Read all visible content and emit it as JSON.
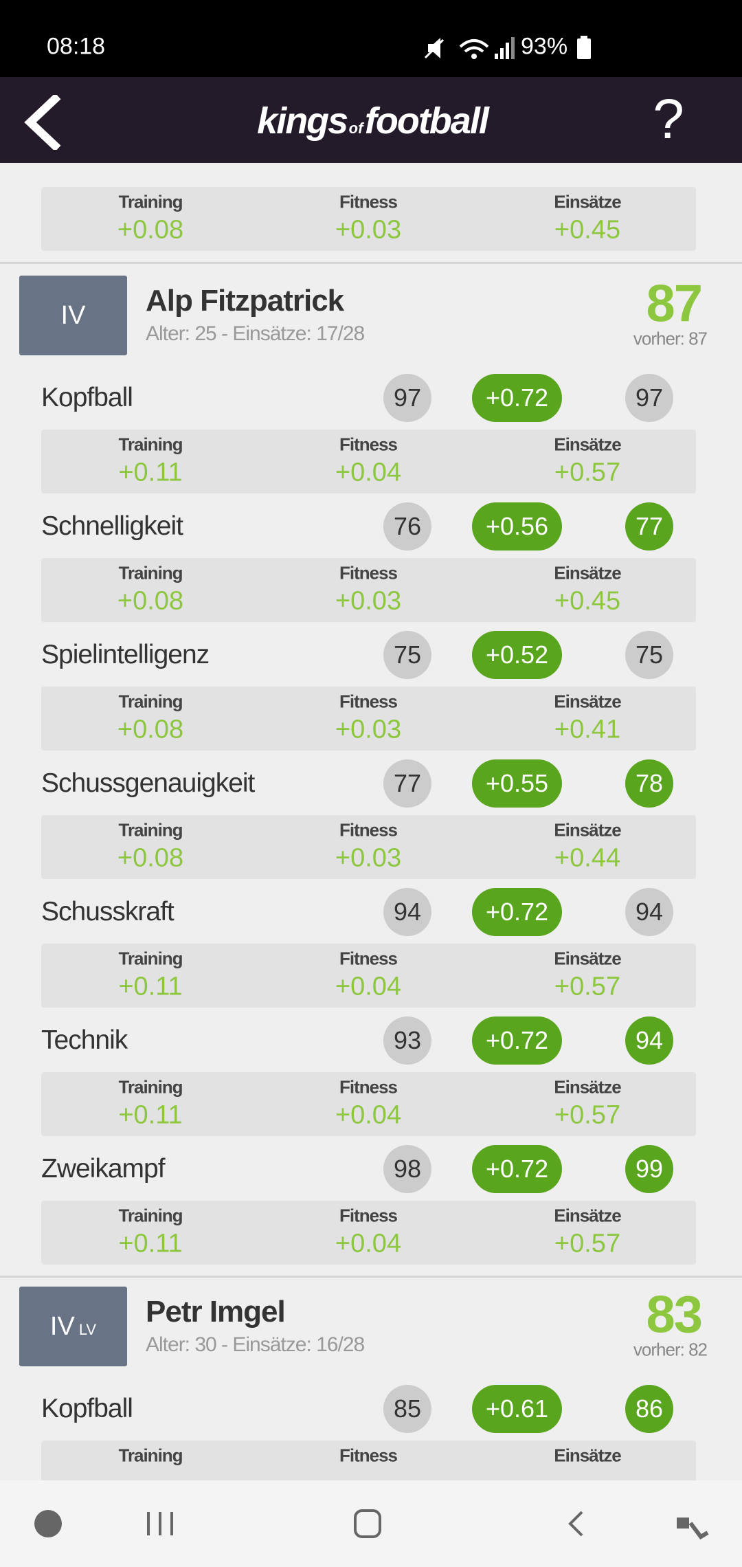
{
  "status": {
    "time": "08:18",
    "battery": "93%"
  },
  "header": {
    "logo_left": "kings",
    "logo_mid": "of",
    "logo_right": "football",
    "help": "?"
  },
  "top_breakdown": {
    "labels": [
      "Training",
      "Fitness",
      "Einsätze"
    ],
    "values": [
      "+0.08",
      "+0.03",
      "+0.45"
    ]
  },
  "players": [
    {
      "position": "IV",
      "name": "Alp Fitzpatrick",
      "meta": "Alter: 25 - Einsätze: 17/28",
      "rating": 87,
      "previous": "vorher: 87",
      "stats": [
        {
          "name": "Kopfball",
          "old": 97,
          "delta": "+0.72",
          "new": 97,
          "labels": [
            "Training",
            "Fitness",
            "Einsätze"
          ],
          "values": [
            "+0.11",
            "+0.04",
            "+0.57"
          ]
        },
        {
          "name": "Schnelligkeit",
          "old": 76,
          "delta": "+0.56",
          "new": 77,
          "labels": [
            "Training",
            "Fitness",
            "Einsätze"
          ],
          "values": [
            "+0.08",
            "+0.03",
            "+0.45"
          ]
        },
        {
          "name": "Spielintelligenz",
          "old": 75,
          "delta": "+0.52",
          "new": 75,
          "labels": [
            "Training",
            "Fitness",
            "Einsätze"
          ],
          "values": [
            "+0.08",
            "+0.03",
            "+0.41"
          ]
        },
        {
          "name": "Schussgenauigkeit",
          "old": 77,
          "delta": "+0.55",
          "new": 78,
          "labels": [
            "Training",
            "Fitness",
            "Einsätze"
          ],
          "values": [
            "+0.08",
            "+0.03",
            "+0.44"
          ]
        },
        {
          "name": "Schusskraft",
          "old": 94,
          "delta": "+0.72",
          "new": 94,
          "labels": [
            "Training",
            "Fitness",
            "Einsätze"
          ],
          "values": [
            "+0.11",
            "+0.04",
            "+0.57"
          ]
        },
        {
          "name": "Technik",
          "old": 93,
          "delta": "+0.72",
          "new": 94,
          "labels": [
            "Training",
            "Fitness",
            "Einsätze"
          ],
          "values": [
            "+0.11",
            "+0.04",
            "+0.57"
          ]
        },
        {
          "name": "Zweikampf",
          "old": 98,
          "delta": "+0.72",
          "new": 99,
          "labels": [
            "Training",
            "Fitness",
            "Einsätze"
          ],
          "values": [
            "+0.11",
            "+0.04",
            "+0.57"
          ]
        }
      ]
    },
    {
      "position": "IV",
      "position_sub": "LV",
      "name": "Petr Imgel",
      "meta": "Alter: 30 - Einsätze: 16/28",
      "rating": 83,
      "previous": "vorher: 82",
      "stats": [
        {
          "name": "Kopfball",
          "old": 85,
          "delta": "+0.61",
          "new": 86,
          "labels": [
            "Training",
            "Fitness",
            "Einsätze"
          ]
        }
      ]
    }
  ]
}
